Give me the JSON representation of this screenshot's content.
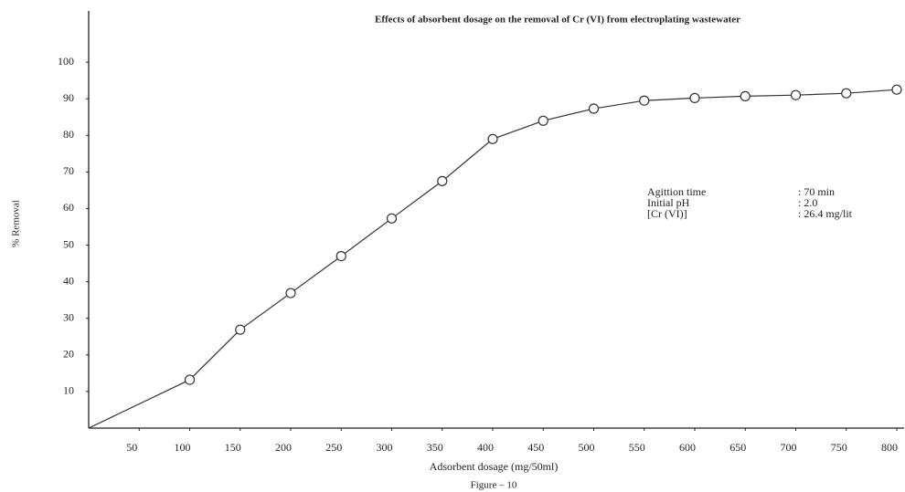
{
  "chart_data": {
    "type": "line",
    "title": "Effects of absorbent dosage on the removal of Cr (VI) from electroplating wastewater",
    "x_label": "Adsorbent dosage (mg/50ml)",
    "y_label": "% Removal",
    "caption": "Figure – 10",
    "x": [
      0,
      100,
      150,
      200,
      250,
      300,
      350,
      400,
      450,
      500,
      550,
      600,
      650,
      700,
      750,
      800
    ],
    "series": [
      {
        "name": "% Removal",
        "color": "#333333",
        "values": [
          0,
          13.2,
          26.9,
          36.9,
          47,
          57.3,
          67.5,
          79,
          84,
          87.3,
          89.5,
          90.2,
          90.7,
          91,
          91.5,
          92.5
        ]
      }
    ],
    "xlim": [
      0,
      800
    ],
    "ylim": [
      0,
      114
    ],
    "xticks": [
      50,
      100,
      150,
      200,
      250,
      300,
      350,
      400,
      450,
      500,
      550,
      600,
      650,
      700,
      750,
      800
    ],
    "yticks": [
      10,
      20,
      30,
      40,
      50,
      60,
      70,
      80,
      90,
      100
    ],
    "annotations": [
      {
        "label": "Agittion time",
        "value": ": 70 min"
      },
      {
        "label": "Initial pH",
        "value": ": 2.0"
      },
      {
        "label": "[Cr (VI)]",
        "value": ": 26.4 mg/lit"
      }
    ]
  }
}
